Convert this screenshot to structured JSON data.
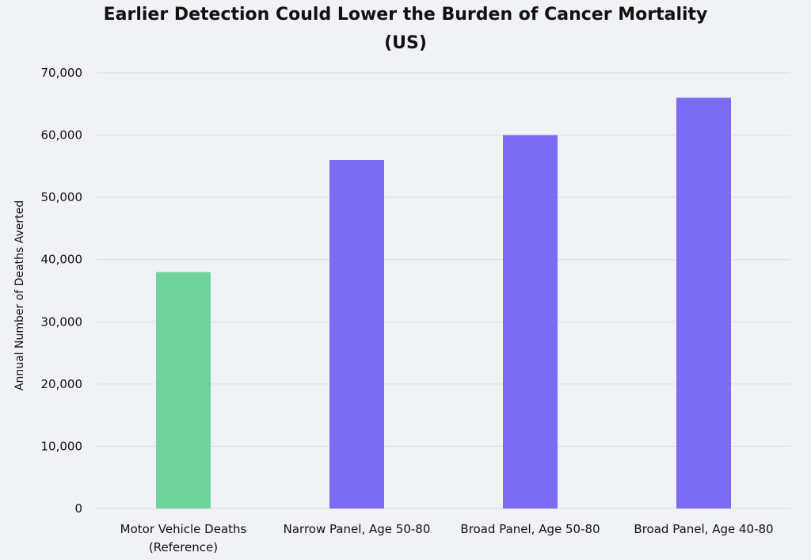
{
  "chart_data": {
    "type": "bar",
    "title_lines": [
      "Earlier Detection Could Lower the Burden of Cancer Mortality",
      "(US)"
    ],
    "ylabel": "Annual Number of Deaths Averted",
    "xlabel": "",
    "ylim": [
      0,
      70000
    ],
    "yticks": [
      0,
      10000,
      20000,
      30000,
      40000,
      50000,
      60000,
      70000
    ],
    "ytick_labels": [
      "0",
      "10,000",
      "20,000",
      "30,000",
      "40,000",
      "50,000",
      "60,000",
      "70,000"
    ],
    "categories": [
      [
        "Motor Vehicle Deaths",
        "(Reference)"
      ],
      [
        "Narrow Panel, Age 50-80"
      ],
      [
        "Broad Panel, Age 50-80"
      ],
      [
        "Broad Panel, Age 40-80"
      ]
    ],
    "values": [
      38000,
      56000,
      60000,
      66000
    ],
    "bar_colors": [
      "#6fd49b",
      "#7b6cf6",
      "#7b6cf6",
      "#7b6cf6"
    ],
    "grid": true,
    "legend": "none"
  }
}
